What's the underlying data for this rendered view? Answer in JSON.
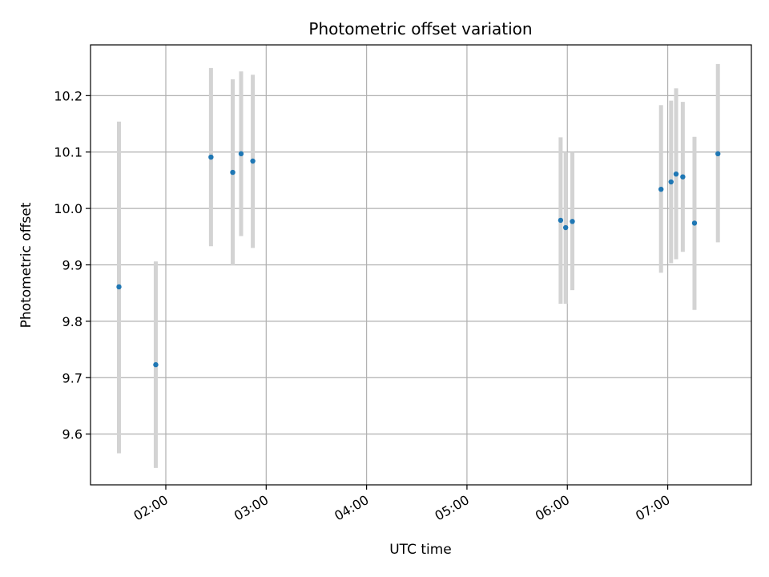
{
  "chart_data": {
    "type": "scatter",
    "title": "Photometric offset variation",
    "xlabel": "UTC time",
    "ylabel": "Photometric offset",
    "xlim": [
      "01:15",
      "07:50"
    ],
    "ylim": [
      9.51,
      10.29
    ],
    "grid": true,
    "x_ticks": [
      "02:00",
      "03:00",
      "04:00",
      "05:00",
      "06:00",
      "07:00"
    ],
    "y_ticks": [
      9.6,
      9.7,
      9.8,
      9.9,
      10.0,
      10.1,
      10.2
    ],
    "y_tick_labels": [
      "9.6",
      "9.7",
      "9.8",
      "9.9",
      "10.0",
      "10.1",
      "10.2"
    ],
    "points": [
      {
        "x": "01:32",
        "y": 9.861,
        "ylow": 9.566,
        "yhigh": 10.154
      },
      {
        "x": "01:54",
        "y": 9.723,
        "ylow": 9.54,
        "yhigh": 9.906
      },
      {
        "x": "02:27",
        "y": 10.091,
        "ylow": 9.933,
        "yhigh": 10.249
      },
      {
        "x": "02:40",
        "y": 10.064,
        "ylow": 9.899,
        "yhigh": 10.229
      },
      {
        "x": "02:45",
        "y": 10.097,
        "ylow": 9.951,
        "yhigh": 10.243
      },
      {
        "x": "02:52",
        "y": 10.084,
        "ylow": 9.93,
        "yhigh": 10.237
      },
      {
        "x": "05:56",
        "y": 9.979,
        "ylow": 9.831,
        "yhigh": 10.126
      },
      {
        "x": "05:59",
        "y": 9.966,
        "ylow": 9.831,
        "yhigh": 10.1
      },
      {
        "x": "06:03",
        "y": 9.977,
        "ylow": 9.855,
        "yhigh": 10.1
      },
      {
        "x": "06:56",
        "y": 10.034,
        "ylow": 9.886,
        "yhigh": 10.183
      },
      {
        "x": "07:02",
        "y": 10.047,
        "ylow": 9.903,
        "yhigh": 10.191
      },
      {
        "x": "07:05",
        "y": 10.061,
        "ylow": 9.91,
        "yhigh": 10.213
      },
      {
        "x": "07:09",
        "y": 10.056,
        "ylow": 9.923,
        "yhigh": 10.189
      },
      {
        "x": "07:16",
        "y": 9.974,
        "ylow": 9.82,
        "yhigh": 10.127
      },
      {
        "x": "07:30",
        "y": 10.097,
        "ylow": 9.94,
        "yhigh": 10.256
      }
    ],
    "colors": {
      "point": "#1f77b4",
      "errorbar": "#d3d3d3",
      "grid": "#b0b0b0",
      "axes": "#000000"
    }
  }
}
